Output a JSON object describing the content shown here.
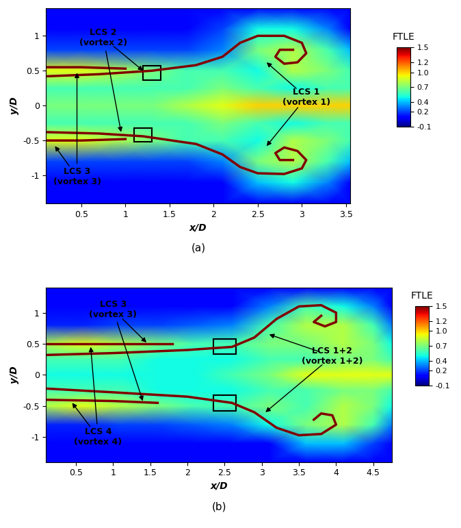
{
  "chart_data": [
    {
      "type": "heatmap",
      "caption": "(a)",
      "xlabel": "x/D",
      "ylabel": "y/D",
      "xlim": [
        0.1,
        3.55
      ],
      "ylim": [
        -1.4,
        1.4
      ],
      "xticks": [
        0.5,
        1,
        1.5,
        2,
        2.5,
        3,
        3.5
      ],
      "yticks": [
        -1,
        -0.5,
        0,
        0.5,
        1
      ],
      "colorbar_label": "FTLE",
      "clim": [
        -0.1,
        1.5
      ],
      "cticks": [
        -0.1,
        0.2,
        0.4,
        0.7,
        1.0,
        1.2,
        1.5
      ],
      "x": [
        0.1,
        0.5,
        0.9,
        1.3,
        1.7,
        2.1,
        2.5,
        2.9,
        3.3,
        3.55
      ],
      "y": [
        -1.4,
        -1.1,
        -0.8,
        -0.5,
        -0.25,
        0,
        0.25,
        0.5,
        0.8,
        1.1,
        1.4
      ],
      "cells": [
        [
          0.1,
          0.1,
          0.1,
          0.1,
          0.1,
          0.1,
          0.1,
          0.1,
          0.1,
          0.1
        ],
        [
          0.1,
          0.1,
          0.1,
          0.1,
          0.1,
          0.1,
          0.4,
          0.5,
          0.3,
          0.1
        ],
        [
          0.2,
          0.2,
          0.2,
          0.2,
          0.2,
          0.3,
          0.7,
          0.8,
          0.6,
          0.4
        ],
        [
          0.9,
          0.9,
          0.8,
          0.7,
          0.6,
          0.6,
          0.5,
          0.8,
          0.7,
          0.6
        ],
        [
          0.6,
          0.6,
          0.6,
          0.6,
          0.6,
          0.7,
          0.6,
          0.5,
          0.6,
          0.6
        ],
        [
          0.7,
          0.7,
          0.7,
          0.7,
          0.8,
          0.9,
          1.0,
          1.0,
          1.0,
          1.0
        ],
        [
          0.6,
          0.6,
          0.6,
          0.6,
          0.6,
          0.7,
          0.6,
          0.5,
          0.6,
          0.6
        ],
        [
          0.9,
          0.9,
          0.8,
          0.7,
          0.6,
          0.6,
          0.5,
          0.8,
          0.7,
          0.6
        ],
        [
          0.2,
          0.2,
          0.2,
          0.2,
          0.2,
          0.3,
          0.7,
          0.8,
          0.6,
          0.4
        ],
        [
          0.1,
          0.1,
          0.1,
          0.1,
          0.1,
          0.2,
          0.5,
          0.5,
          0.3,
          0.1
        ],
        [
          0.1,
          0.1,
          0.1,
          0.1,
          0.1,
          0.1,
          0.1,
          0.1,
          0.1,
          0.1
        ]
      ],
      "ridges": [
        {
          "value": 1.5,
          "x": [
            0.1,
            0.7,
            1.3,
            1.8,
            2.1,
            2.3,
            2.5,
            2.8,
            3.0,
            3.05,
            2.95,
            2.8,
            2.7,
            2.75,
            2.9
          ],
          "y": [
            0.42,
            0.45,
            0.5,
            0.58,
            0.7,
            0.9,
            1.0,
            1.0,
            0.9,
            0.75,
            0.62,
            0.6,
            0.7,
            0.8,
            0.8
          ]
        },
        {
          "value": 1.5,
          "x": [
            0.1,
            0.5,
            1.0
          ],
          "y": [
            0.55,
            0.55,
            0.53
          ]
        },
        {
          "value": 1.5,
          "x": [
            0.1,
            0.7,
            1.2,
            1.8,
            2.1,
            2.3,
            2.5,
            2.8,
            3.0,
            3.05,
            2.95,
            2.8,
            2.7,
            2.75,
            2.9
          ],
          "y": [
            -0.38,
            -0.4,
            -0.44,
            -0.55,
            -0.7,
            -0.88,
            -0.97,
            -0.98,
            -0.9,
            -0.78,
            -0.65,
            -0.6,
            -0.68,
            -0.78,
            -0.78
          ]
        },
        {
          "value": 1.5,
          "x": [
            0.1,
            0.5,
            1.0
          ],
          "y": [
            -0.5,
            -0.5,
            -0.48
          ]
        }
      ],
      "boxes": [
        {
          "x0": 1.2,
          "y0": 0.37,
          "x1": 1.4,
          "y1": 0.57
        },
        {
          "x0": 1.1,
          "y0": -0.52,
          "x1": 1.3,
          "y1": -0.32
        }
      ],
      "annotations": [
        {
          "text": "LCS 2\n(vortex 2)",
          "text_xy": [
            0.75,
            0.97
          ],
          "arrows": [
            [
              1.2,
              0.5
            ],
            [
              0.95,
              -0.38
            ]
          ]
        },
        {
          "text": "LCS 1\n(vortex 1)",
          "text_xy": [
            3.05,
            0.12
          ],
          "arrows": [
            [
              2.6,
              0.62
            ],
            [
              2.6,
              -0.58
            ]
          ]
        },
        {
          "text": "LCS 3\n(vortex 3)",
          "text_xy": [
            0.45,
            -1.02
          ],
          "arrows": [
            [
              0.2,
              -0.58
            ],
            [
              0.45,
              0.47
            ]
          ]
        }
      ]
    },
    {
      "type": "heatmap",
      "caption": "(b)",
      "xlabel": "x/D",
      "ylabel": "y/D",
      "xlim": [
        0.1,
        4.75
      ],
      "ylim": [
        -1.4,
        1.4
      ],
      "xticks": [
        0.5,
        1,
        1.5,
        2,
        2.5,
        3,
        3.5,
        4,
        4.5
      ],
      "yticks": [
        -1,
        -0.5,
        0,
        0.5,
        1
      ],
      "colorbar_label": "FTLE",
      "clim": [
        -0.1,
        1.5
      ],
      "cticks": [
        -0.1,
        0.2,
        0.4,
        0.7,
        1.0,
        1.2,
        1.5
      ],
      "x": [
        0.1,
        0.6,
        1.1,
        1.6,
        2.1,
        2.6,
        3.1,
        3.6,
        4.1,
        4.5,
        4.75
      ],
      "y": [
        -1.4,
        -1.1,
        -0.8,
        -0.5,
        -0.25,
        0,
        0.25,
        0.5,
        0.8,
        1.1,
        1.4
      ],
      "cells": [
        [
          0.1,
          0.1,
          0.1,
          0.1,
          0.1,
          0.1,
          0.1,
          0.1,
          0.1,
          0.1,
          0.1
        ],
        [
          0.1,
          0.1,
          0.1,
          0.1,
          0.1,
          0.1,
          0.1,
          0.4,
          0.4,
          0.2,
          0.1
        ],
        [
          0.15,
          0.15,
          0.2,
          0.2,
          0.25,
          0.3,
          0.5,
          0.7,
          0.8,
          0.6,
          0.3
        ],
        [
          0.8,
          0.9,
          0.8,
          0.7,
          0.6,
          0.6,
          0.7,
          0.6,
          0.8,
          0.7,
          0.5
        ],
        [
          0.6,
          0.6,
          0.6,
          0.5,
          0.5,
          0.5,
          0.6,
          0.6,
          0.7,
          0.7,
          0.6
        ],
        [
          0.5,
          0.5,
          0.5,
          0.5,
          0.5,
          0.6,
          0.7,
          0.9,
          0.9,
          0.9,
          0.9
        ],
        [
          0.6,
          0.6,
          0.6,
          0.5,
          0.5,
          0.5,
          0.6,
          0.6,
          0.7,
          0.7,
          0.6
        ],
        [
          0.8,
          0.9,
          0.8,
          0.7,
          0.6,
          0.6,
          0.7,
          0.7,
          0.8,
          0.7,
          0.5
        ],
        [
          0.15,
          0.15,
          0.2,
          0.2,
          0.25,
          0.3,
          0.6,
          0.8,
          0.8,
          0.6,
          0.3
        ],
        [
          0.1,
          0.1,
          0.1,
          0.1,
          0.1,
          0.1,
          0.3,
          0.6,
          0.5,
          0.3,
          0.1
        ],
        [
          0.1,
          0.1,
          0.1,
          0.1,
          0.1,
          0.1,
          0.1,
          0.1,
          0.1,
          0.1,
          0.1
        ]
      ],
      "ridges": [
        {
          "value": 1.5,
          "x": [
            0.1,
            1.0,
            2.0,
            2.6,
            2.9,
            3.2,
            3.5,
            3.8,
            4.0,
            4.0,
            3.85,
            3.7,
            3.8
          ],
          "y": [
            0.32,
            0.35,
            0.4,
            0.45,
            0.6,
            0.9,
            1.1,
            1.12,
            1.0,
            0.85,
            0.78,
            0.85,
            0.95
          ]
        },
        {
          "value": 1.5,
          "x": [
            0.1,
            1.0,
            1.8
          ],
          "y": [
            0.5,
            0.5,
            0.5
          ]
        },
        {
          "value": 1.5,
          "x": [
            0.1,
            1.0,
            2.0,
            2.6,
            2.9,
            3.2,
            3.5,
            3.8,
            4.0,
            3.95,
            3.8,
            3.7
          ],
          "y": [
            -0.22,
            -0.28,
            -0.35,
            -0.45,
            -0.6,
            -0.85,
            -0.97,
            -0.95,
            -0.8,
            -0.65,
            -0.62,
            -0.72
          ]
        },
        {
          "value": 1.5,
          "x": [
            0.1,
            1.0,
            1.6
          ],
          "y": [
            -0.4,
            -0.42,
            -0.45
          ]
        }
      ],
      "boxes": [
        {
          "x0": 2.35,
          "y0": 0.33,
          "x1": 2.65,
          "y1": 0.58
        },
        {
          "x0": 2.35,
          "y0": -0.58,
          "x1": 2.65,
          "y1": -0.33
        }
      ],
      "annotations": [
        {
          "text": "LCS 3\n(vortex 3)",
          "text_xy": [
            1.0,
            1.05
          ],
          "arrows": [
            [
              1.45,
              0.52
            ],
            [
              1.4,
              -0.42
            ]
          ]
        },
        {
          "text": "LCS 1+2\n(vortex 1+2)",
          "text_xy": [
            3.95,
            0.3
          ],
          "arrows": [
            [
              3.1,
              0.65
            ],
            [
              3.05,
              -0.6
            ]
          ]
        },
        {
          "text": "LCS 4\n(vortex 4)",
          "text_xy": [
            0.8,
            -1.0
          ],
          "arrows": [
            [
              0.45,
              -0.45
            ],
            [
              0.7,
              0.45
            ]
          ]
        }
      ]
    }
  ]
}
